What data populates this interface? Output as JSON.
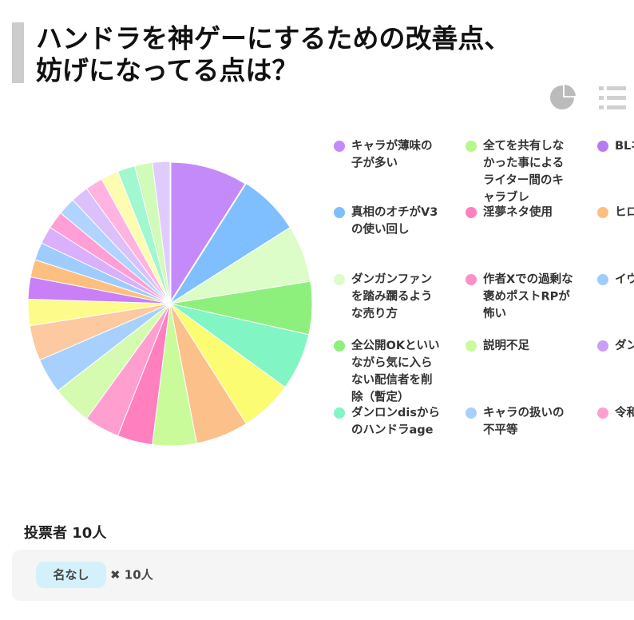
{
  "header": {
    "title_lines": [
      "ハンドラを神ゲーにするための改善点、",
      "妨げになってる点は？"
    ]
  },
  "chart_data": {
    "type": "pie",
    "values": [
      9,
      7,
      6.5,
      6,
      6.5,
      6,
      6,
      5,
      4,
      4,
      4.5,
      4,
      4,
      3,
      2.5,
      2,
      2,
      2,
      2,
      2,
      2,
      2,
      2,
      2,
      2,
      2
    ],
    "colors": [
      "#c58af9",
      "#7fbfff",
      "#dcfcc8",
      "#8ef07c",
      "#82f5c4",
      "#fcfc72",
      "#fcc08a",
      "#c9fb9a",
      "#ff7fbf",
      "#ff9fd0",
      "#d4fbb0",
      "#a8d0ff",
      "#fdc9a0",
      "#fdfc8a",
      "#c97ff5",
      "#fcbf80",
      "#9fccff",
      "#d9b0fb",
      "#ff9fd6",
      "#b0d4ff",
      "#dcc0fb",
      "#ffb3e0",
      "#fdfcb0",
      "#a0f7d0",
      "#d0fbb8",
      "#e0ccfc"
    ],
    "legend": [
      {
        "name": "キャラが薄味の子が多い",
        "color": "#c58af9"
      },
      {
        "name": "全てを共有しなかった事によるライター間のキャラブレ",
        "color": "#b8f78a"
      },
      {
        "name": "BLネ",
        "color": "#b77cf2"
      },
      {
        "name": "真相のオチがV3の使い回し",
        "color": "#7fbfff"
      },
      {
        "name": "淫夢ネタ使用",
        "color": "#ff7fbf"
      },
      {
        "name": "ヒロ",
        "color": "#fcbf80"
      },
      {
        "name": "ダンガンファンを踏み躙るような売り方",
        "color": "#dcfcc8"
      },
      {
        "name": "作者Xでの過剰な褒めポストRPが怖い",
        "color": "#ff8fc8"
      },
      {
        "name": "イウ",
        "color": "#9fccff"
      },
      {
        "name": "全公開OKといいながら気に入らない配信者を削除（暫定）",
        "color": "#8ef07c"
      },
      {
        "name": "説明不足",
        "color": "#c9fb9a"
      },
      {
        "name": "ダン",
        "color": "#c9a0f7"
      },
      {
        "name": "ダンロンdisからのハンドラage",
        "color": "#82f5c4"
      },
      {
        "name": "キャラの扱いの不平等",
        "color": "#a8d0ff"
      },
      {
        "name": "令和",
        "color": "#ff9fd0"
      }
    ]
  },
  "footer": {
    "voters": "投票者 10人",
    "tag": "名なし",
    "count": "✖ 10人"
  }
}
